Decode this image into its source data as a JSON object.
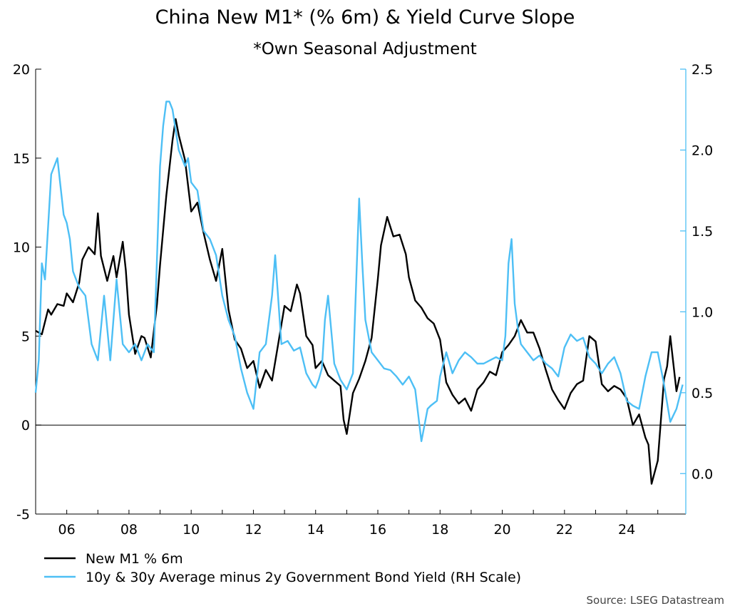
{
  "chart_data": {
    "type": "line",
    "title": "China New M1* (% 6m) & Yield Curve Slope",
    "subtitle": "*Own Seasonal Adjustment",
    "source": "Source: LSEG Datastream",
    "x_tick_labels": [
      "06",
      "08",
      "10",
      "12",
      "14",
      "16",
      "18",
      "20",
      "22",
      "24"
    ],
    "x_tick_years": [
      2006,
      2008,
      2010,
      2012,
      2014,
      2016,
      2018,
      2020,
      2022,
      2024
    ],
    "xlim": [
      2005.0,
      2025.9
    ],
    "y_left": {
      "ticks": [
        20,
        15,
        10,
        5,
        0,
        -5
      ],
      "tick_labels": [
        "20",
        "15",
        "10",
        "5",
        "0",
        "-5"
      ],
      "ylim": [
        -5,
        20
      ]
    },
    "y_right": {
      "ticks": [
        2.5,
        2.0,
        1.5,
        1.0,
        0.5,
        0.0
      ],
      "tick_labels": [
        "2.5",
        "2.0",
        "1.5",
        "1.0",
        "0.5",
        "0.0"
      ],
      "ylim": [
        -0.25,
        2.5
      ]
    },
    "zero_line": 0,
    "legend_position": "bottom-left",
    "colors": {
      "m1": "#000000",
      "curve": "#4dbff5",
      "right_axis": "#4dbff5"
    },
    "series": [
      {
        "name": "New M1 % 6m",
        "axis": "left",
        "color": "#000000",
        "x": [
          2005.0,
          2005.2,
          2005.4,
          2005.5,
          2005.7,
          2005.9,
          2006.0,
          2006.2,
          2006.4,
          2006.5,
          2006.7,
          2006.9,
          2007.0,
          2007.1,
          2007.3,
          2007.5,
          2007.6,
          2007.8,
          2007.9,
          2008.0,
          2008.2,
          2008.4,
          2008.5,
          2008.7,
          2008.9,
          2009.0,
          2009.2,
          2009.4,
          2009.5,
          2009.6,
          2009.8,
          2010.0,
          2010.2,
          2010.4,
          2010.6,
          2010.8,
          2011.0,
          2011.2,
          2011.4,
          2011.6,
          2011.8,
          2012.0,
          2012.2,
          2012.4,
          2012.6,
          2012.8,
          2013.0,
          2013.2,
          2013.4,
          2013.5,
          2013.7,
          2013.9,
          2014.0,
          2014.2,
          2014.4,
          2014.6,
          2014.8,
          2014.9,
          2015.0,
          2015.2,
          2015.4,
          2015.6,
          2015.8,
          2016.0,
          2016.1,
          2016.3,
          2016.5,
          2016.7,
          2016.9,
          2017.0,
          2017.2,
          2017.4,
          2017.6,
          2017.8,
          2018.0,
          2018.2,
          2018.4,
          2018.6,
          2018.8,
          2019.0,
          2019.2,
          2019.4,
          2019.6,
          2019.8,
          2020.0,
          2020.2,
          2020.4,
          2020.6,
          2020.8,
          2021.0,
          2021.2,
          2021.4,
          2021.6,
          2021.8,
          2022.0,
          2022.2,
          2022.4,
          2022.6,
          2022.8,
          2023.0,
          2023.2,
          2023.4,
          2023.6,
          2023.8,
          2024.0,
          2024.2,
          2024.4,
          2024.6,
          2024.7,
          2024.8,
          2025.0,
          2025.2,
          2025.3,
          2025.4,
          2025.6,
          2025.7
        ],
        "values": [
          5.3,
          5.1,
          6.5,
          6.2,
          6.8,
          6.7,
          7.4,
          6.9,
          8.0,
          9.3,
          10.0,
          9.6,
          11.9,
          9.5,
          8.1,
          9.5,
          8.3,
          10.3,
          8.7,
          6.2,
          4.0,
          5.0,
          4.9,
          3.8,
          6.8,
          9.0,
          12.9,
          16.0,
          17.2,
          16.3,
          14.9,
          12.0,
          12.5,
          10.8,
          9.3,
          8.1,
          9.9,
          6.5,
          4.8,
          4.3,
          3.2,
          3.6,
          2.1,
          3.1,
          2.5,
          4.6,
          6.7,
          6.4,
          7.9,
          7.4,
          5.0,
          4.5,
          3.2,
          3.6,
          2.8,
          2.5,
          2.2,
          0.3,
          -0.5,
          1.8,
          2.6,
          3.6,
          4.9,
          8.2,
          10.1,
          11.7,
          10.6,
          10.7,
          9.6,
          8.3,
          7.0,
          6.6,
          6.0,
          5.7,
          4.8,
          2.4,
          1.7,
          1.2,
          1.5,
          0.8,
          2.0,
          2.4,
          3.0,
          2.8,
          4.1,
          4.5,
          5.0,
          5.9,
          5.2,
          5.2,
          4.3,
          3.1,
          2.0,
          1.4,
          0.9,
          1.8,
          2.3,
          2.5,
          5.0,
          4.7,
          2.3,
          1.9,
          2.2,
          2.0,
          1.5,
          0.0,
          0.6,
          -0.7,
          -1.1,
          -3.3,
          -2.0,
          2.6,
          3.3,
          5.0,
          1.9,
          2.7
        ]
      },
      {
        "name": "10y & 30y Average minus 2y Government Bond Yield (RH Scale)",
        "axis": "right",
        "color": "#4dbff5",
        "x": [
          2005.0,
          2005.1,
          2005.2,
          2005.3,
          2005.5,
          2005.7,
          2005.9,
          2006.0,
          2006.1,
          2006.2,
          2006.4,
          2006.6,
          2006.8,
          2007.0,
          2007.2,
          2007.4,
          2007.6,
          2007.8,
          2008.0,
          2008.2,
          2008.4,
          2008.6,
          2008.8,
          2009.0,
          2009.1,
          2009.2,
          2009.3,
          2009.4,
          2009.6,
          2009.8,
          2009.9,
          2010.0,
          2010.2,
          2010.4,
          2010.6,
          2010.8,
          2011.0,
          2011.2,
          2011.4,
          2011.6,
          2011.8,
          2012.0,
          2012.2,
          2012.4,
          2012.6,
          2012.7,
          2012.9,
          2013.1,
          2013.3,
          2013.5,
          2013.7,
          2013.9,
          2014.0,
          2014.1,
          2014.2,
          2014.3,
          2014.4,
          2014.6,
          2014.8,
          2015.0,
          2015.2,
          2015.4,
          2015.5,
          2015.6,
          2015.8,
          2016.0,
          2016.2,
          2016.4,
          2016.6,
          2016.8,
          2017.0,
          2017.2,
          2017.4,
          2017.5,
          2017.6,
          2017.7,
          2017.9,
          2018.0,
          2018.2,
          2018.4,
          2018.6,
          2018.8,
          2019.0,
          2019.2,
          2019.4,
          2019.6,
          2019.8,
          2020.0,
          2020.1,
          2020.2,
          2020.3,
          2020.4,
          2020.5,
          2020.6,
          2020.8,
          2021.0,
          2021.2,
          2021.4,
          2021.6,
          2021.8,
          2022.0,
          2022.2,
          2022.4,
          2022.6,
          2022.8,
          2023.0,
          2023.2,
          2023.4,
          2023.6,
          2023.8,
          2024.0,
          2024.2,
          2024.4,
          2024.6,
          2024.8,
          2025.0,
          2025.2,
          2025.4,
          2025.6,
          2025.8
        ],
        "values": [
          0.5,
          0.7,
          1.3,
          1.2,
          1.85,
          1.95,
          1.6,
          1.55,
          1.45,
          1.25,
          1.15,
          1.1,
          0.8,
          0.7,
          1.1,
          0.7,
          1.2,
          0.8,
          0.75,
          0.8,
          0.7,
          0.8,
          0.75,
          1.9,
          2.15,
          2.3,
          2.3,
          2.25,
          2.0,
          1.9,
          1.95,
          1.8,
          1.75,
          1.5,
          1.45,
          1.35,
          1.1,
          0.95,
          0.85,
          0.65,
          0.5,
          0.4,
          0.75,
          0.8,
          1.1,
          1.35,
          0.8,
          0.82,
          0.76,
          0.78,
          0.62,
          0.55,
          0.53,
          0.58,
          0.65,
          0.95,
          1.1,
          0.68,
          0.58,
          0.52,
          0.62,
          1.7,
          1.3,
          0.95,
          0.75,
          0.7,
          0.65,
          0.64,
          0.6,
          0.55,
          0.6,
          0.52,
          0.2,
          0.3,
          0.4,
          0.42,
          0.45,
          0.6,
          0.75,
          0.62,
          0.7,
          0.75,
          0.72,
          0.68,
          0.68,
          0.7,
          0.72,
          0.7,
          0.85,
          1.3,
          1.45,
          1.05,
          0.9,
          0.8,
          0.75,
          0.7,
          0.73,
          0.68,
          0.65,
          0.6,
          0.78,
          0.86,
          0.82,
          0.84,
          0.72,
          0.68,
          0.62,
          0.68,
          0.72,
          0.62,
          0.45,
          0.42,
          0.4,
          0.6,
          0.75,
          0.75,
          0.55,
          0.32,
          0.4,
          0.55
        ]
      }
    ]
  }
}
